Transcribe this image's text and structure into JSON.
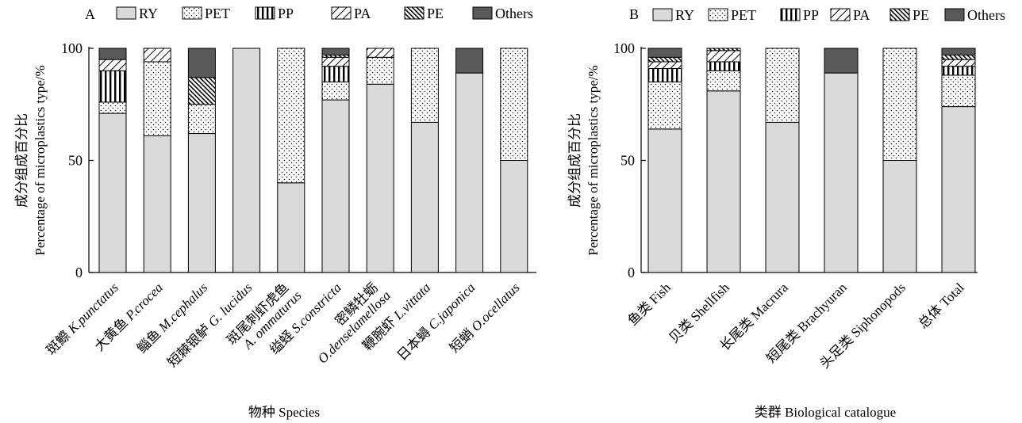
{
  "categories": [
    "RY",
    "PET",
    "PP",
    "PA",
    "PE",
    "Others"
  ],
  "colors": {
    "RY": "#d9d9d9",
    "PET": "#ffffff",
    "PP": "#ffffff",
    "PA": "#ffffff",
    "PE": "#ffffff",
    "Others": "#595959"
  },
  "chart_data": [
    {
      "panel_label": "A",
      "type": "bar",
      "stacked": true,
      "xlabel": "物种 Species",
      "ylabel_zh": "成分组成百分比",
      "ylabel_en": "Percentage of microplastics type/%",
      "ylim": [
        0,
        100
      ],
      "yticks": [
        0,
        50,
        100
      ],
      "legend": [
        "RY",
        "PET",
        "PP",
        "PA",
        "PE",
        "Others"
      ],
      "categories": [
        {
          "zh": "斑鰶 ",
          "sci": "K.punctatus"
        },
        {
          "zh": "大黄鱼 ",
          "sci": "P.crocea"
        },
        {
          "zh": "鲻鱼 ",
          "sci": "M.cephalus"
        },
        {
          "zh": "短棘银鲈 ",
          "sci": "G. lucidus"
        },
        {
          "zh": "斑尾刺虾虎鱼",
          "sci": "A. ommaturus",
          "two_line": true
        },
        {
          "zh": "缢蛏 ",
          "sci": "S.constricta"
        },
        {
          "zh": "密鳞牡蛎",
          "sci": "O.denselamellosa",
          "two_line": true
        },
        {
          "zh": "鞭腕虾 ",
          "sci": "L.vittata"
        },
        {
          "zh": "日本蟳 ",
          "sci": "C.japonica"
        },
        {
          "zh": "短蛸 ",
          "sci": "O.ocellatus"
        }
      ],
      "series": [
        {
          "name": "RY",
          "values": [
            71,
            61,
            62,
            100,
            40,
            77,
            84,
            67,
            89,
            50
          ]
        },
        {
          "name": "PET",
          "values": [
            5,
            33,
            13,
            0,
            60,
            8,
            12,
            33,
            0,
            50
          ]
        },
        {
          "name": "PP",
          "values": [
            14,
            0,
            0,
            0,
            0,
            7,
            0,
            0,
            0,
            0
          ]
        },
        {
          "name": "PA",
          "values": [
            5,
            6,
            0,
            0,
            0,
            4,
            4,
            0,
            0,
            0
          ]
        },
        {
          "name": "PE",
          "values": [
            0,
            0,
            12,
            0,
            0,
            1,
            0,
            0,
            0,
            0
          ]
        },
        {
          "name": "Others",
          "values": [
            5,
            0,
            13,
            0,
            0,
            3,
            0,
            0,
            11,
            0
          ]
        }
      ]
    },
    {
      "panel_label": "B",
      "type": "bar",
      "stacked": true,
      "xlabel": "类群 Biological catalogue",
      "ylabel_zh": "成分组成百分比",
      "ylabel_en": "Percentage of microplastics type/%",
      "ylim": [
        0,
        100
      ],
      "yticks": [
        0,
        50,
        100
      ],
      "legend": [
        "RY",
        "PET",
        "PP",
        "PA",
        "PE",
        "Others"
      ],
      "categories": [
        {
          "zh": "鱼类 ",
          "sci": "Fish"
        },
        {
          "zh": "贝类 ",
          "sci": "Shellfish"
        },
        {
          "zh": "长尾类 ",
          "sci": "Macrura"
        },
        {
          "zh": "短尾类 ",
          "sci": "Brachyuran"
        },
        {
          "zh": "头足类 ",
          "sci": "Siphonopods"
        },
        {
          "zh": "总体 ",
          "sci": "Total"
        }
      ],
      "series": [
        {
          "name": "RY",
          "values": [
            64,
            81,
            67,
            89,
            50,
            74
          ]
        },
        {
          "name": "PET",
          "values": [
            21,
            9,
            33,
            0,
            50,
            14
          ]
        },
        {
          "name": "PP",
          "values": [
            6,
            4,
            0,
            0,
            0,
            4
          ]
        },
        {
          "name": "PA",
          "values": [
            3,
            5,
            0,
            0,
            0,
            3
          ]
        },
        {
          "name": "PE",
          "values": [
            2,
            1,
            0,
            0,
            0,
            2
          ]
        },
        {
          "name": "Others",
          "values": [
            4,
            0,
            0,
            11,
            0,
            3
          ]
        }
      ]
    }
  ]
}
